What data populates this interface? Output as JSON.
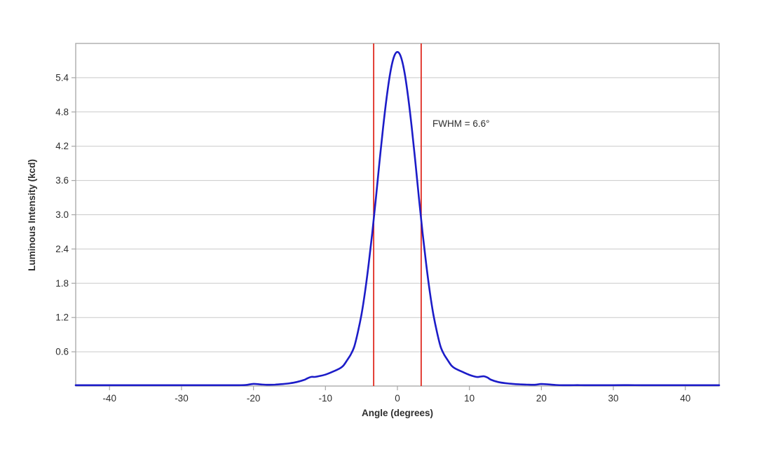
{
  "chart_data": {
    "type": "line",
    "title": "",
    "xlabel": "Angle (degrees)",
    "ylabel": "Luminous Intensity (kcd)",
    "xlim": [
      -44.7,
      44.7
    ],
    "ylim": [
      0,
      6.0
    ],
    "x_ticks": [
      -40,
      -30,
      -20,
      -10,
      0,
      10,
      20,
      30,
      40
    ],
    "y_ticks": [
      0.6,
      1.2,
      1.8,
      2.4,
      3.0,
      3.6,
      4.2,
      4.8,
      5.4
    ],
    "grid": "horizontal",
    "legend": "none",
    "annotation": {
      "text": "FWHM = 6.6°",
      "x": 4.9,
      "y": 4.6
    },
    "fwhm_lines": {
      "x": [
        -3.3,
        3.3
      ]
    },
    "series": [
      {
        "name": "luminous-intensity-curve",
        "peak_value": 5.85,
        "peak_angle": 0,
        "x": [
          -44.7,
          -44,
          -42,
          -40,
          -38,
          -36,
          -34,
          -32,
          -30,
          -28,
          -26,
          -25,
          -24,
          -23,
          -22,
          -21,
          -20,
          -19,
          -18,
          -17,
          -16,
          -15,
          -14,
          -13,
          -12.5,
          -12,
          -11.5,
          -11,
          -10,
          -9,
          -8,
          -7.5,
          -7,
          -6.5,
          -6,
          -5.5,
          -5,
          -4.5,
          -4,
          -3.5,
          -3,
          -2.5,
          -2,
          -1.5,
          -1,
          -0.5,
          0,
          0.5,
          1,
          1.5,
          2,
          2.5,
          3,
          3.5,
          4,
          4.5,
          5,
          5.5,
          6,
          6.5,
          7,
          7.5,
          8,
          9,
          10,
          11,
          11.5,
          12,
          12.5,
          13,
          14,
          15,
          16,
          17,
          18,
          19,
          20,
          21,
          22,
          23,
          24,
          25,
          26,
          28,
          30,
          32,
          34,
          36,
          38,
          40,
          42,
          44,
          44.7
        ],
        "y": [
          0.012,
          0.012,
          0.01,
          0.013,
          0.01,
          0.012,
          0.01,
          0.014,
          0.012,
          0.012,
          0.01,
          0.014,
          0.012,
          0.01,
          0.014,
          0.02,
          0.038,
          0.028,
          0.022,
          0.025,
          0.034,
          0.048,
          0.07,
          0.105,
          0.135,
          0.16,
          0.16,
          0.17,
          0.2,
          0.25,
          0.31,
          0.36,
          0.45,
          0.55,
          0.69,
          0.94,
          1.25,
          1.65,
          2.13,
          2.68,
          3.28,
          3.91,
          4.52,
          5.05,
          5.48,
          5.76,
          5.85,
          5.76,
          5.48,
          5.05,
          4.52,
          3.91,
          3.28,
          2.68,
          2.13,
          1.65,
          1.25,
          0.94,
          0.69,
          0.55,
          0.45,
          0.36,
          0.31,
          0.25,
          0.195,
          0.16,
          0.165,
          0.17,
          0.15,
          0.11,
          0.07,
          0.05,
          0.038,
          0.03,
          0.025,
          0.022,
          0.035,
          0.028,
          0.018,
          0.014,
          0.014,
          0.016,
          0.012,
          0.014,
          0.012,
          0.016,
          0.012,
          0.014,
          0.012,
          0.014,
          0.012,
          0.014,
          0.014
        ]
      }
    ]
  },
  "colors": {
    "curve": "#1c1cc8",
    "fwhm_line": "#e02b20",
    "gridline": "#c9c9c9",
    "plot_border": "#a6a6a6",
    "tick": "#a6a6a6",
    "text": "#2e2e2e",
    "background": "#ffffff"
  }
}
